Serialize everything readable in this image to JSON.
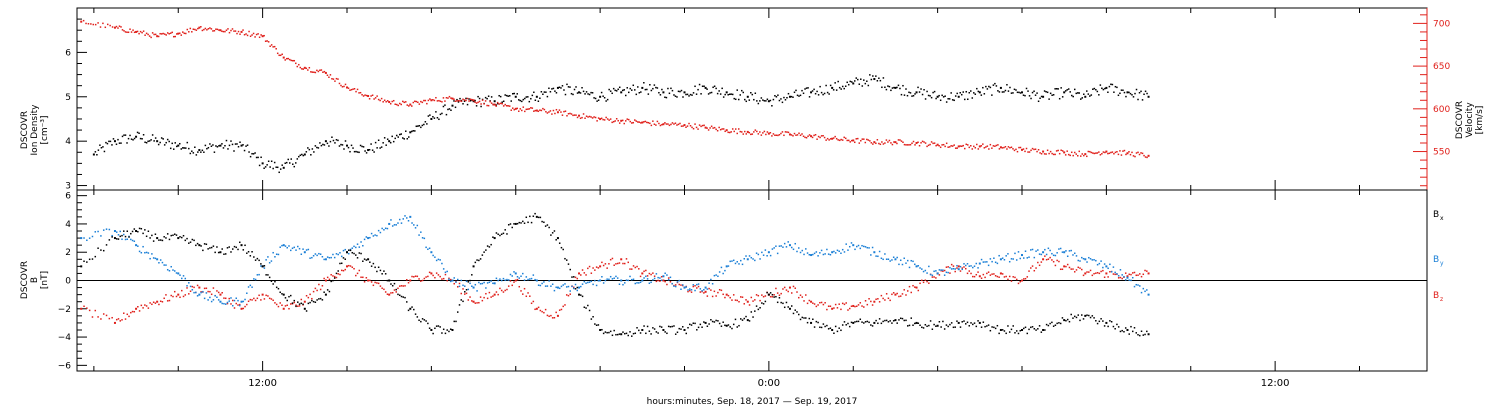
{
  "chart_data": [
    {
      "type": "scatter",
      "panel": "top",
      "x_axis": {
        "unit": "hours",
        "range": [
          7.6,
          39.6
        ],
        "tick_labels": [
          {
            "x": 12,
            "label": "12:00"
          },
          {
            "x": 24,
            "label": "0:00"
          },
          {
            "x": 36,
            "label": "12:00"
          }
        ],
        "minor_tick_interval": 2,
        "xlabel": "hours:minutes, Sep. 18, 2017 — Sep. 19, 2017"
      },
      "left_axis": {
        "label_lines": [
          "DSCOVR",
          "Ion Density",
          "[cm⁻³]"
        ],
        "range": [
          2.9,
          7.0
        ],
        "ticks": [
          3,
          4,
          5,
          6
        ],
        "tick_labels": [
          "3",
          "4",
          "5",
          "6"
        ]
      },
      "right_axis": {
        "label_lines": [
          "DSCOVR",
          "Velocity",
          "[km/s]"
        ],
        "range": [
          505,
          718
        ],
        "ticks": [
          550,
          600,
          650,
          700
        ],
        "tick_labels": [
          "550",
          "600",
          "650",
          "700"
        ]
      },
      "series": [
        {
          "key": "density",
          "axis": "left",
          "color": "#000000",
          "x": [
            8.0,
            8.5,
            9.0,
            9.5,
            10.0,
            10.5,
            11.0,
            11.5,
            12.0,
            12.5,
            13.0,
            13.5,
            14.0,
            14.5,
            15.0,
            15.5,
            16.0,
            16.5,
            17.0,
            17.5,
            18.0,
            18.5,
            19.0,
            19.5,
            20.0,
            20.5,
            21.0,
            21.5,
            22.0,
            22.5,
            23.0,
            23.5,
            24.0,
            24.5,
            25.0,
            25.5,
            26.0,
            26.5,
            27.0,
            27.5,
            28.0,
            28.5,
            29.0,
            29.5,
            30.0,
            30.5,
            31.0,
            31.5,
            32.0,
            32.5,
            33.0
          ],
          "y": [
            3.7,
            4.0,
            4.1,
            4.0,
            3.9,
            3.8,
            3.9,
            3.9,
            3.5,
            3.4,
            3.7,
            4.0,
            3.9,
            3.8,
            4.0,
            4.2,
            4.5,
            4.8,
            4.9,
            4.9,
            5.0,
            5.0,
            5.2,
            5.1,
            5.0,
            5.1,
            5.2,
            5.1,
            5.1,
            5.2,
            5.1,
            5.0,
            4.9,
            5.0,
            5.1,
            5.2,
            5.3,
            5.4,
            5.2,
            5.1,
            5.0,
            5.0,
            5.1,
            5.2,
            5.1,
            5.0,
            5.1,
            5.0,
            5.2,
            5.1,
            5.0
          ]
        },
        {
          "key": "velocity",
          "axis": "right",
          "color": "#e0201b",
          "x": [
            7.7,
            8.5,
            9.0,
            9.5,
            10.0,
            10.5,
            11.0,
            11.5,
            12.0,
            12.5,
            13.0,
            13.5,
            14.0,
            14.5,
            15.0,
            15.5,
            16.0,
            16.5,
            17.0,
            17.5,
            18.0,
            18.5,
            19.0,
            19.5,
            20.0,
            20.5,
            21.0,
            21.5,
            22.0,
            22.5,
            23.0,
            23.5,
            24.0,
            24.5,
            25.0,
            25.5,
            26.0,
            26.5,
            27.0,
            27.5,
            28.0,
            28.5,
            29.0,
            29.5,
            30.0,
            30.5,
            31.0,
            31.5,
            32.0,
            32.5,
            33.0
          ],
          "y": [
            702,
            695,
            690,
            685,
            688,
            695,
            692,
            690,
            685,
            660,
            648,
            642,
            625,
            615,
            608,
            605,
            610,
            612,
            610,
            605,
            600,
            598,
            596,
            592,
            588,
            586,
            584,
            582,
            581,
            578,
            575,
            573,
            571,
            570,
            568,
            565,
            563,
            561,
            561,
            560,
            558,
            556,
            556,
            555,
            552,
            550,
            549,
            547,
            550,
            548,
            545
          ]
        }
      ]
    },
    {
      "type": "scatter",
      "panel": "bottom",
      "x_axis": {
        "unit": "hours",
        "range": [
          7.6,
          39.6
        ],
        "tick_labels": [
          {
            "x": 12,
            "label": "12:00"
          },
          {
            "x": 24,
            "label": "0:00"
          },
          {
            "x": 36,
            "label": "12:00"
          }
        ],
        "minor_tick_interval": 2
      },
      "left_axis": {
        "label_lines": [
          "DSCOVR",
          "B",
          "[nT]"
        ],
        "range": [
          -6.4,
          6.4
        ],
        "ticks": [
          -6,
          -4,
          -2,
          0,
          2,
          4,
          6
        ],
        "tick_labels": [
          "−6",
          "−4",
          "−2",
          "0",
          "2",
          "4",
          "6"
        ]
      },
      "zero_line": true,
      "legend": [
        {
          "main": "B",
          "sub": "x",
          "color": "#000000"
        },
        {
          "main": "B",
          "sub": "y",
          "color": "#1a7fd6"
        },
        {
          "main": "B",
          "sub": "z",
          "color": "#e0201b"
        }
      ],
      "legend_position": "right",
      "series": [
        {
          "key": "bx",
          "color": "#000000",
          "x": [
            7.7,
            8.5,
            9.0,
            9.5,
            10.0,
            10.5,
            11.0,
            11.5,
            12.0,
            12.5,
            13.0,
            13.5,
            14.0,
            14.5,
            15.0,
            15.5,
            16.0,
            16.5,
            17.0,
            17.5,
            18.0,
            18.5,
            19.0,
            19.5,
            20.0,
            20.5,
            21.0,
            21.5,
            22.0,
            22.5,
            23.0,
            23.5,
            24.0,
            24.5,
            25.0,
            25.5,
            26.0,
            26.5,
            27.0,
            27.5,
            28.0,
            28.5,
            29.0,
            29.5,
            30.0,
            30.5,
            31.0,
            31.5,
            32.0,
            32.5,
            33.0
          ],
          "y": [
            1.0,
            3.0,
            3.5,
            3.0,
            3.0,
            2.5,
            2.0,
            2.5,
            1.0,
            -1.0,
            -2.0,
            -1.0,
            2.0,
            1.5,
            0.0,
            -2.0,
            -3.5,
            -3.5,
            1.0,
            3.0,
            4.0,
            4.5,
            3.0,
            -1.0,
            -3.5,
            -3.8,
            -3.5,
            -3.5,
            -3.5,
            -3.0,
            -3.2,
            -2.8,
            -1.0,
            -2.0,
            -3.0,
            -3.5,
            -3.0,
            -3.0,
            -2.8,
            -3.0,
            -3.2,
            -3.0,
            -3.0,
            -3.5,
            -3.5,
            -3.5,
            -2.8,
            -2.5,
            -3.0,
            -3.5,
            -3.8
          ]
        },
        {
          "key": "by",
          "color": "#1a7fd6",
          "x": [
            7.7,
            8.5,
            9.0,
            9.5,
            10.0,
            10.5,
            11.0,
            11.5,
            12.0,
            12.5,
            13.0,
            13.5,
            14.0,
            14.5,
            15.0,
            15.5,
            16.0,
            16.5,
            17.0,
            17.5,
            18.0,
            18.5,
            19.0,
            19.5,
            20.0,
            20.5,
            21.0,
            21.5,
            22.0,
            22.5,
            23.0,
            23.5,
            24.0,
            24.5,
            25.0,
            25.5,
            26.0,
            26.5,
            27.0,
            27.5,
            28.0,
            28.5,
            29.0,
            29.5,
            30.0,
            30.5,
            31.0,
            31.5,
            32.0,
            32.5,
            33.0
          ],
          "y": [
            3.0,
            3.5,
            2.5,
            1.5,
            0.5,
            -1.0,
            -1.5,
            -1.5,
            1.0,
            2.5,
            2.0,
            1.5,
            2.0,
            3.0,
            4.0,
            4.5,
            2.0,
            0.0,
            -0.5,
            -0.2,
            0.5,
            0.0,
            -0.5,
            -0.5,
            0.0,
            0.0,
            0.0,
            0.3,
            -0.5,
            -0.5,
            1.0,
            1.5,
            2.0,
            2.5,
            1.8,
            2.0,
            2.5,
            2.0,
            1.5,
            1.0,
            0.5,
            0.8,
            1.2,
            1.5,
            1.8,
            2.0,
            2.0,
            1.5,
            1.0,
            0.2,
            -1.0
          ]
        },
        {
          "key": "bz",
          "color": "#e0201b",
          "x": [
            7.7,
            8.5,
            9.0,
            9.5,
            10.0,
            10.5,
            11.0,
            11.5,
            12.0,
            12.5,
            13.0,
            13.5,
            14.0,
            14.5,
            15.0,
            15.5,
            16.0,
            16.5,
            17.0,
            17.5,
            18.0,
            18.5,
            19.0,
            19.5,
            20.0,
            20.5,
            21.0,
            21.5,
            22.0,
            22.5,
            23.0,
            23.5,
            24.0,
            24.5,
            25.0,
            25.5,
            26.0,
            26.5,
            27.0,
            27.5,
            28.0,
            28.5,
            29.0,
            29.5,
            30.0,
            30.5,
            31.0,
            31.5,
            32.0,
            32.5,
            33.0
          ],
          "y": [
            -2.0,
            -3.0,
            -2.0,
            -1.5,
            -1.0,
            -0.5,
            -1.0,
            -2.0,
            -1.0,
            -2.0,
            -1.5,
            0.0,
            1.0,
            0.0,
            -1.0,
            0.0,
            0.5,
            0.0,
            -1.5,
            -1.0,
            0.0,
            -2.0,
            -2.5,
            0.5,
            1.0,
            1.5,
            0.5,
            0.0,
            -0.5,
            -0.8,
            -1.0,
            -1.5,
            -1.0,
            -0.5,
            -1.5,
            -2.0,
            -1.8,
            -1.5,
            -1.0,
            -0.5,
            0.5,
            1.0,
            0.3,
            0.5,
            0.0,
            1.5,
            1.0,
            0.5,
            0.5,
            0.3,
            0.5
          ]
        }
      ]
    }
  ]
}
